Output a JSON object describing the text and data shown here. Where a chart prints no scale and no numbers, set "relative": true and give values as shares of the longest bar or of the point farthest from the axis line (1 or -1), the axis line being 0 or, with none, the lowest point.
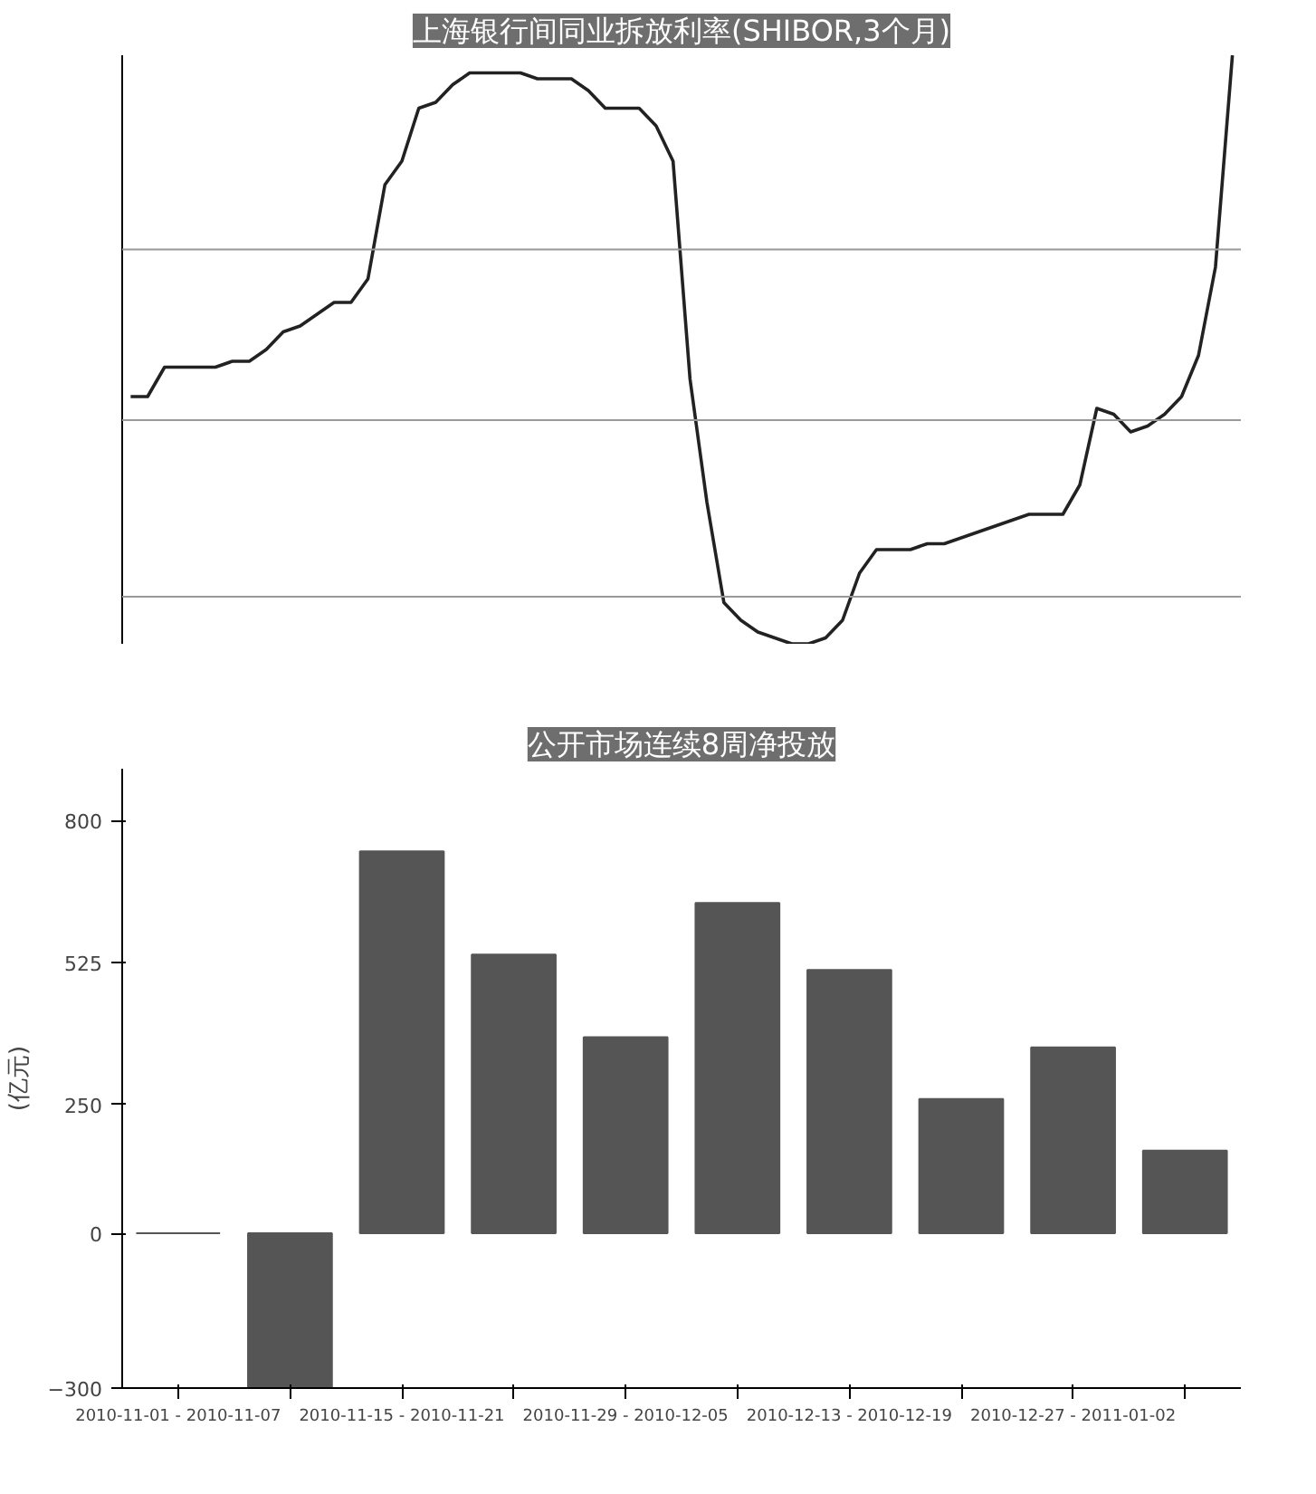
{
  "chart_data": [
    {
      "type": "line",
      "title": "上海银行间同业拆放利率(SHIBOR,3个月)",
      "relative": true,
      "categories": [
        null,
        null,
        null,
        null,
        null,
        null,
        null,
        null,
        null,
        null,
        null,
        null,
        null,
        null,
        null,
        null,
        null,
        null,
        null,
        null,
        null,
        null,
        null,
        null,
        null,
        null,
        null,
        null,
        null,
        null,
        null,
        null,
        null,
        null,
        null,
        null,
        null,
        null,
        null,
        null,
        null,
        null,
        null,
        null,
        null,
        null,
        null,
        null,
        null,
        null,
        null,
        null,
        null,
        null,
        null,
        null,
        null,
        null,
        null,
        null,
        null,
        null,
        null,
        null,
        null,
        null
      ],
      "series": [
        {
          "color": "#222222",
          "values": [
            0.42,
            0.42,
            0.47,
            0.47,
            0.47,
            0.47,
            0.48,
            0.48,
            0.5,
            0.53,
            0.54,
            0.56,
            0.58,
            0.58,
            0.62,
            0.78,
            0.82,
            0.91,
            0.92,
            0.95,
            0.97,
            0.97,
            0.97,
            0.97,
            0.96,
            0.96,
            0.96,
            0.94,
            0.91,
            0.91,
            0.91,
            0.88,
            0.82,
            0.45,
            0.24,
            0.07,
            0.04,
            0.02,
            0.01,
            0.0,
            0.0,
            0.01,
            0.04,
            0.12,
            0.16,
            0.16,
            0.16,
            0.17,
            0.17,
            0.18,
            0.19,
            0.2,
            0.21,
            0.22,
            0.22,
            0.22,
            0.27,
            0.4,
            0.39,
            0.36,
            0.37,
            0.39,
            0.42,
            0.49,
            0.64,
            1.0
          ]
        }
      ],
      "ref_lines": [
        {
          "axis": "y",
          "value": 0.67,
          "color": "#999999"
        },
        {
          "axis": "y",
          "value": 0.38,
          "color": "#999999"
        },
        {
          "axis": "y",
          "value": 0.08,
          "color": "#999999"
        }
      ]
    },
    {
      "type": "bar",
      "title": "公开市场连续8周净投放",
      "ylabel": "(亿元)",
      "categories": [
        "2010-11-01 - 2010-11-07",
        null,
        "2010-11-15 - 2010-11-21",
        null,
        "2010-11-29 - 2010-12-05",
        null,
        "2010-12-13 - 2010-12-19",
        null,
        "2010-12-27 - 2011-01-02",
        null
      ],
      "values": [
        0,
        -300,
        740,
        540,
        380,
        640,
        510,
        260,
        360,
        160
      ],
      "color": "#555555",
      "ylim": [
        -300,
        900
      ],
      "yticks": [
        -300,
        0,
        250,
        525,
        800
      ]
    }
  ]
}
